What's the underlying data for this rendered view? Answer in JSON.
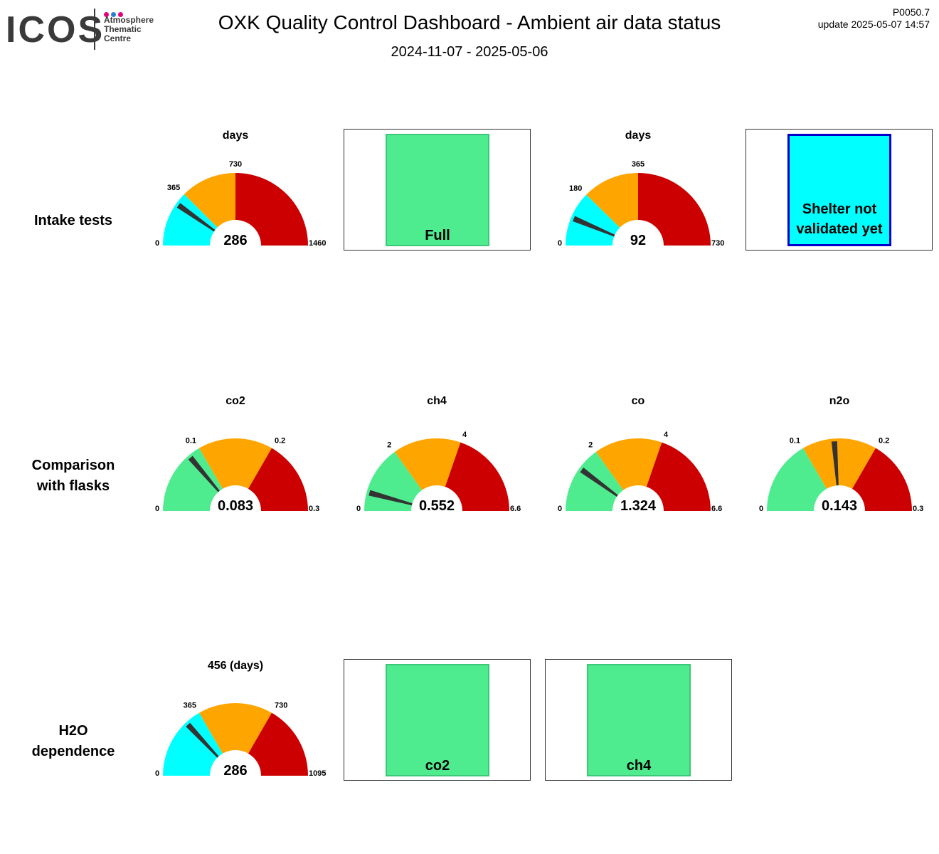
{
  "logo": {
    "word": "ICOS",
    "sub_lines": [
      "Atmosphere",
      "Thematic",
      "Centre"
    ],
    "dot_colors": [
      "#e6007e",
      "#2b7fd3",
      "#e6007e"
    ]
  },
  "header": {
    "title": "OXK  Quality Control Dashboard - Ambient air data status",
    "date_range": "2024-11-07 - 2025-05-06",
    "version": "P0050.7",
    "update": "update  2025-05-07 14:57"
  },
  "rows": {
    "intake": "Intake tests",
    "flasks_line1": "Comparison",
    "flasks_line2": "with flasks",
    "h2o_line1": "H2O",
    "h2o_line2": "dependence"
  },
  "colors": {
    "cyan": "#00ffff",
    "green": "#4fec8f",
    "orange": "#ffa500",
    "red": "#cc0000",
    "needle": "#333333",
    "status_border_green": "#3cc878",
    "status_border_blue": "#0000cc"
  },
  "status": {
    "intake_1": "Full",
    "intake_2_line1": "Shelter not",
    "intake_2_line2": "validated yet",
    "h2o_1": "co2",
    "h2o_2": "ch4"
  },
  "chart_data": [
    {
      "type": "gauge",
      "id": "intake-1",
      "title": "days",
      "min": 0,
      "max": 1460,
      "value": 286,
      "value_label": "286",
      "bands": [
        {
          "from": 0,
          "to": 365,
          "color": "cyan"
        },
        {
          "from": 365,
          "to": 730,
          "color": "orange"
        },
        {
          "from": 730,
          "to": 1460,
          "color": "red"
        }
      ],
      "tick_labels": [
        {
          "value": 0,
          "text": "0"
        },
        {
          "value": 365,
          "text": "365"
        },
        {
          "value": 730,
          "text": "730"
        },
        {
          "value": 1460,
          "text": "1460"
        }
      ]
    },
    {
      "type": "gauge",
      "id": "intake-2",
      "title": "days",
      "min": 0,
      "max": 730,
      "value": 92,
      "value_label": "92",
      "bands": [
        {
          "from": 0,
          "to": 180,
          "color": "cyan"
        },
        {
          "from": 180,
          "to": 365,
          "color": "orange"
        },
        {
          "from": 365,
          "to": 730,
          "color": "red"
        }
      ],
      "tick_labels": [
        {
          "value": 0,
          "text": "0"
        },
        {
          "value": 180,
          "text": "180"
        },
        {
          "value": 365,
          "text": "365"
        },
        {
          "value": 730,
          "text": "730"
        }
      ]
    },
    {
      "type": "gauge",
      "id": "flask-co2",
      "title": "co2",
      "min": 0,
      "max": 0.3,
      "value": 0.083,
      "value_label": "0.083",
      "bands": [
        {
          "from": 0,
          "to": 0.1,
          "color": "green"
        },
        {
          "from": 0.1,
          "to": 0.2,
          "color": "orange"
        },
        {
          "from": 0.2,
          "to": 0.3,
          "color": "red"
        }
      ],
      "tick_labels": [
        {
          "value": 0,
          "text": "0"
        },
        {
          "value": 0.1,
          "text": "0.1"
        },
        {
          "value": 0.2,
          "text": "0.2"
        },
        {
          "value": 0.3,
          "text": "0.3"
        }
      ]
    },
    {
      "type": "gauge",
      "id": "flask-ch4",
      "title": "ch4",
      "min": 0,
      "max": 6.6,
      "value": 0.552,
      "value_label": "0.552",
      "bands": [
        {
          "from": 0,
          "to": 2,
          "color": "green"
        },
        {
          "from": 2,
          "to": 4,
          "color": "orange"
        },
        {
          "from": 4,
          "to": 6.6,
          "color": "red"
        }
      ],
      "tick_labels": [
        {
          "value": 0,
          "text": "0"
        },
        {
          "value": 2,
          "text": "2"
        },
        {
          "value": 4,
          "text": "4"
        },
        {
          "value": 6.6,
          "text": "6.6"
        }
      ]
    },
    {
      "type": "gauge",
      "id": "flask-co",
      "title": "co",
      "min": 0,
      "max": 6.6,
      "value": 1.324,
      "value_label": "1.324",
      "bands": [
        {
          "from": 0,
          "to": 2,
          "color": "green"
        },
        {
          "from": 2,
          "to": 4,
          "color": "orange"
        },
        {
          "from": 4,
          "to": 6.6,
          "color": "red"
        }
      ],
      "tick_labels": [
        {
          "value": 0,
          "text": "0"
        },
        {
          "value": 2,
          "text": "2"
        },
        {
          "value": 4,
          "text": "4"
        },
        {
          "value": 6.6,
          "text": "6.6"
        }
      ]
    },
    {
      "type": "gauge",
      "id": "flask-n2o",
      "title": "n2o",
      "min": 0,
      "max": 0.3,
      "value": 0.143,
      "value_label": "0.143",
      "bands": [
        {
          "from": 0,
          "to": 0.1,
          "color": "green"
        },
        {
          "from": 0.1,
          "to": 0.2,
          "color": "orange"
        },
        {
          "from": 0.2,
          "to": 0.3,
          "color": "red"
        }
      ],
      "tick_labels": [
        {
          "value": 0,
          "text": "0"
        },
        {
          "value": 0.1,
          "text": "0.1"
        },
        {
          "value": 0.2,
          "text": "0.2"
        },
        {
          "value": 0.3,
          "text": "0.3"
        }
      ]
    },
    {
      "type": "gauge",
      "id": "h2o-1",
      "title": "456 (days)",
      "min": 0,
      "max": 1095,
      "value": 286,
      "value_label": "286",
      "bands": [
        {
          "from": 0,
          "to": 365,
          "color": "cyan"
        },
        {
          "from": 365,
          "to": 730,
          "color": "orange"
        },
        {
          "from": 730,
          "to": 1095,
          "color": "red"
        }
      ],
      "tick_labels": [
        {
          "value": 0,
          "text": "0"
        },
        {
          "value": 365,
          "text": "365"
        },
        {
          "value": 730,
          "text": "730"
        },
        {
          "value": 1095,
          "text": "1095"
        }
      ]
    }
  ]
}
